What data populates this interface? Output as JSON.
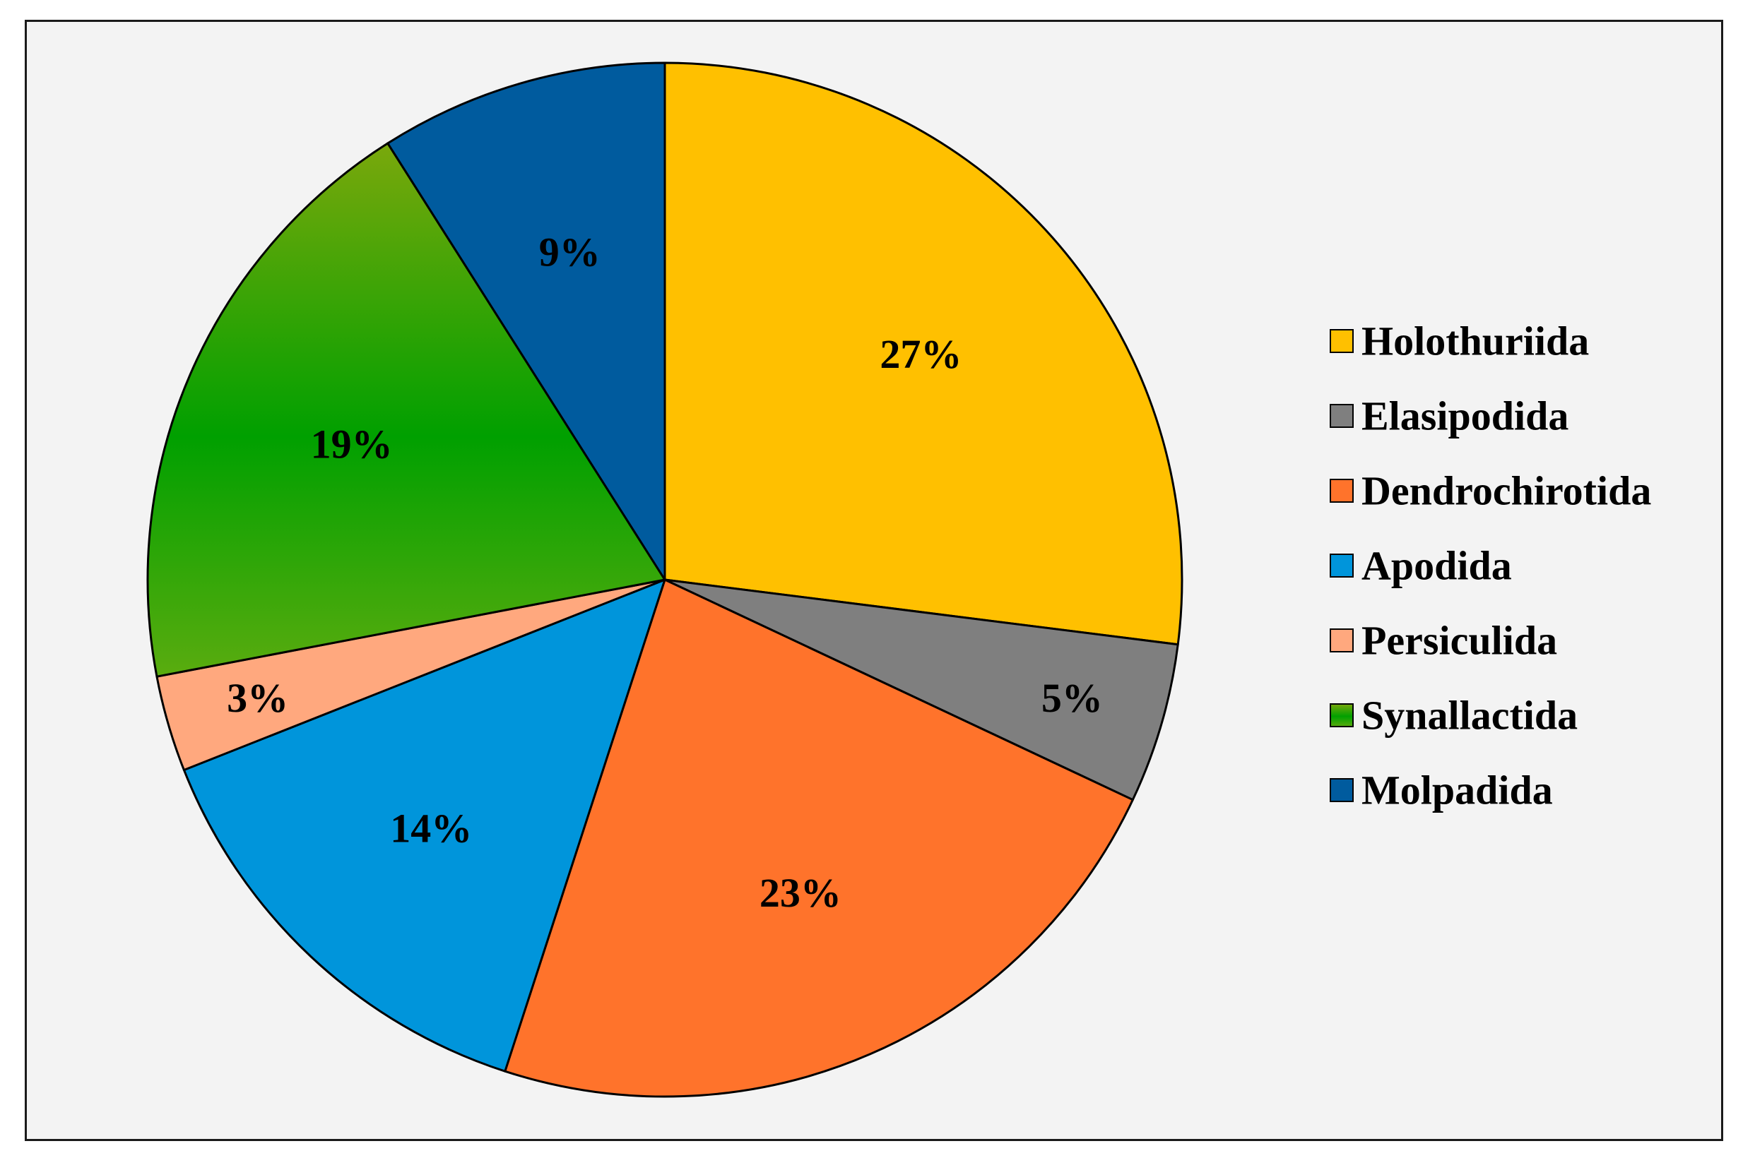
{
  "chart_data": {
    "type": "pie",
    "title": "",
    "start_angle_deg": 0,
    "direction": "clockwise",
    "legend_position": "right",
    "slices": [
      {
        "label": "Holothuriida",
        "value": 27,
        "display": "27%",
        "color": "#ffc000"
      },
      {
        "label": "Elasipodida",
        "value": 5,
        "display": "5%",
        "color": "#7f7f7f"
      },
      {
        "label": "Dendrochirotida",
        "value": 23,
        "display": "23%",
        "color": "#ff732b"
      },
      {
        "label": "Apodida",
        "value": 14,
        "display": "14%",
        "color": "#0095db"
      },
      {
        "label": "Persiculida",
        "value": 3,
        "display": "3%",
        "color": "#ffa87e"
      },
      {
        "label": "Synallactida",
        "value": 19,
        "display": "19%",
        "color": "#3da40a",
        "gradient": [
          "#7aa80c",
          "#00a000",
          "#5aac0f"
        ]
      },
      {
        "label": "Molpadida",
        "value": 9,
        "display": "9%",
        "color": "#005b9e"
      }
    ]
  }
}
